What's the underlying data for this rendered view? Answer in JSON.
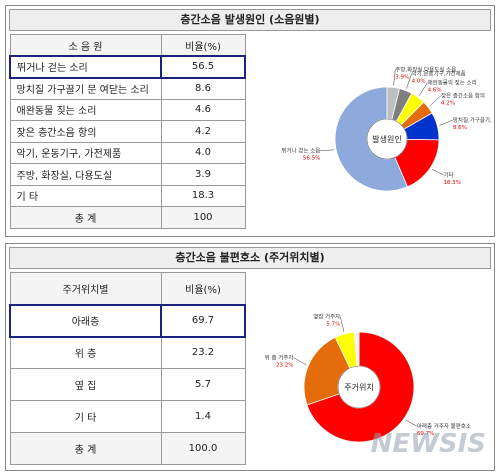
{
  "sections": [
    {
      "title": "층간소음 발생원인 (소음원별)",
      "table": {
        "header": [
          "소 음 원",
          "비율(%)"
        ],
        "rows": [
          [
            "뛰거나 걷는 소리",
            "56.5"
          ],
          [
            "망치질 가구끌기 문 여닫는 소리",
            "8.6"
          ],
          [
            "애완동물 짖는 소리",
            "4.6"
          ],
          [
            "잦은 층간소음 항의",
            "4.2"
          ],
          [
            "악기, 운동기구, 가전제품",
            "4.0"
          ],
          [
            "주방, 화장실, 다용도실",
            "3.9"
          ],
          [
            "기 타",
            "18.3"
          ],
          [
            "총 계",
            "100"
          ]
        ]
      }
    },
    {
      "title": "층간소음 불편호소 (주거위치별)",
      "table": {
        "header": [
          "주거위치별",
          "비율(%)"
        ],
        "rows": [
          [
            "아래층",
            "69.7"
          ],
          [
            "위 층",
            "23.2"
          ],
          [
            "옆 집",
            "5.7"
          ],
          [
            "기 타",
            "1.4"
          ],
          [
            "총 계",
            "100.0"
          ]
        ]
      }
    }
  ],
  "chart_data": [
    {
      "type": "pie",
      "center_label": "발생원인",
      "categories": [
        "주방,화장실,다용도실 소음",
        "악기,운동기구,가전제품",
        "애완동물의 짖는 소리",
        "잦은 층간소음 항의",
        "망치질,가구끌기,문 여닫는 소음",
        "기타",
        "뛰거나 걷는 소음"
      ],
      "values": [
        3.9,
        4.0,
        4.6,
        4.2,
        8.6,
        18.3,
        56.5
      ],
      "value_labels": [
        "3.9%",
        "4.0%",
        "4.6%",
        "4.2%",
        "8.6%",
        "18.3%",
        "56.5%"
      ],
      "colors": [
        "#bfbfbf",
        "#7f7f7f",
        "#ffff00",
        "#e46c0a",
        "#0033cc",
        "#ff0000",
        "#8ea9db"
      ]
    },
    {
      "type": "pie",
      "center_label": "주거위치",
      "categories": [
        "아래층 거주자 불편호소",
        "위 층 거주자",
        "옆집 거주자",
        null
      ],
      "values": [
        69.7,
        23.2,
        5.7,
        1.4
      ],
      "value_labels": [
        "69.7%",
        "23.2%",
        "5.7%",
        null
      ],
      "colors": [
        "#ff0000",
        "#e46c0a",
        "#ffff00",
        "#f2f2f2"
      ]
    }
  ],
  "watermark": "NEWSIS"
}
